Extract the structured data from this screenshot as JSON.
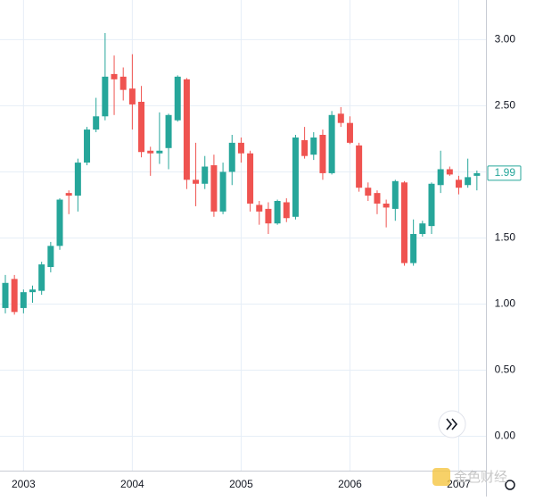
{
  "chart_data": {
    "type": "candlestick",
    "categories": [
      null,
      null,
      "2003",
      null,
      null,
      null,
      null,
      null,
      null,
      null,
      null,
      null,
      null,
      null,
      "2004",
      null,
      null,
      null,
      null,
      null,
      null,
      null,
      null,
      null,
      null,
      null,
      "2005",
      null,
      null,
      null,
      null,
      null,
      null,
      null,
      null,
      null,
      null,
      null,
      "2006",
      null,
      null,
      null,
      null,
      null,
      null,
      null,
      null,
      null,
      null,
      null,
      "2007",
      null,
      null
    ],
    "open": [
      0.97,
      1.19,
      0.97,
      1.09,
      1.1,
      1.28,
      1.44,
      1.84,
      1.82,
      2.07,
      2.32,
      2.42,
      2.74,
      2.72,
      2.63,
      2.53,
      2.16,
      2.14,
      2.18,
      2.39,
      2.7,
      1.94,
      1.91,
      2.05,
      1.7,
      2.0,
      2.22,
      2.14,
      1.75,
      1.72,
      1.61,
      1.77,
      1.66,
      2.24,
      2.13,
      2.28,
      1.99,
      2.44,
      2.37,
      2.2,
      1.88,
      1.84,
      1.76,
      1.72,
      1.92,
      1.31,
      1.53,
      1.59,
      1.9,
      2.02,
      1.94,
      1.9,
      1.97
    ],
    "high": [
      1.22,
      1.22,
      1.11,
      1.14,
      1.32,
      1.47,
      1.8,
      1.86,
      2.1,
      2.34,
      2.56,
      3.05,
      2.88,
      2.79,
      2.89,
      2.65,
      2.19,
      2.45,
      2.44,
      2.73,
      2.71,
      2.22,
      2.12,
      2.13,
      2.07,
      2.28,
      2.26,
      2.16,
      1.78,
      1.77,
      1.79,
      1.8,
      2.28,
      2.34,
      2.3,
      2.32,
      2.46,
      2.49,
      2.42,
      2.22,
      1.92,
      1.86,
      1.79,
      1.94,
      1.93,
      1.64,
      1.63,
      1.92,
      2.16,
      2.04,
      1.97,
      2.1,
      2.01
    ],
    "low": [
      0.93,
      0.92,
      0.93,
      1.01,
      1.07,
      1.24,
      1.41,
      1.68,
      1.7,
      2.05,
      2.3,
      2.39,
      2.43,
      2.54,
      2.32,
      2.11,
      1.97,
      2.06,
      2.02,
      2.38,
      1.87,
      1.74,
      1.87,
      1.66,
      1.68,
      1.9,
      2.07,
      1.7,
      1.6,
      1.53,
      1.6,
      1.62,
      1.64,
      2.1,
      2.09,
      1.94,
      1.98,
      2.34,
      2.21,
      1.85,
      1.78,
      1.68,
      1.58,
      1.63,
      1.29,
      1.29,
      1.51,
      1.53,
      1.84,
      1.97,
      1.83,
      1.88,
      1.86
    ],
    "close": [
      1.16,
      0.94,
      1.09,
      1.11,
      1.3,
      1.44,
      1.79,
      1.82,
      2.07,
      2.32,
      2.42,
      2.72,
      2.7,
      2.62,
      2.51,
      2.15,
      2.14,
      2.16,
      2.43,
      2.72,
      1.94,
      1.91,
      2.04,
      1.7,
      2.0,
      2.22,
      2.14,
      1.76,
      1.7,
      1.61,
      1.78,
      1.65,
      2.26,
      2.12,
      2.26,
      1.99,
      2.43,
      2.37,
      2.22,
      1.88,
      1.82,
      1.76,
      1.73,
      1.93,
      1.31,
      1.53,
      1.61,
      1.91,
      2.02,
      1.98,
      1.88,
      1.96,
      1.99
    ],
    "up_color": "#26a69a",
    "down_color": "#ef5350",
    "ylim": [
      -0.26,
      3.3
    ],
    "yticks": [
      {
        "value": 0,
        "label": "0.00"
      },
      {
        "value": 0.5,
        "label": "0.50"
      },
      {
        "value": 1,
        "label": "1.00"
      },
      {
        "value": 1.5,
        "label": "1.50"
      },
      {
        "value": 2,
        "label": "2.00"
      },
      {
        "value": 2.5,
        "label": "2.50"
      },
      {
        "value": 3,
        "label": "3.00"
      }
    ],
    "grid": true,
    "last_price": 1.99,
    "watermark": "金色财经"
  }
}
